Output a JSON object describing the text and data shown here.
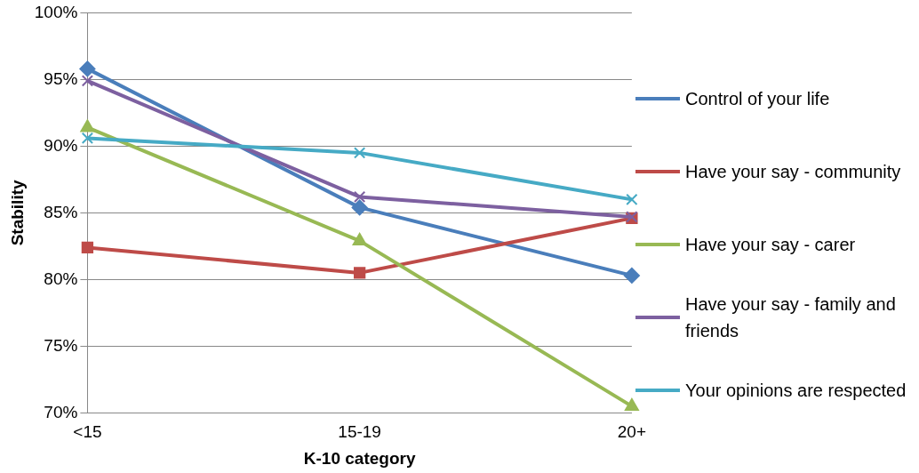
{
  "chart_data": {
    "type": "line",
    "xlabel": "K-10 category",
    "ylabel": "Stability",
    "categories": [
      "<15",
      "15-19",
      "20+"
    ],
    "series": [
      {
        "name": "Control of your life",
        "color": "#4a7ebb",
        "marker": "diamond",
        "values": [
          95.8,
          85.4,
          80.3
        ]
      },
      {
        "name": "Have your say  - community",
        "color": "#be4b48",
        "marker": "square",
        "values": [
          82.4,
          80.5,
          84.6
        ]
      },
      {
        "name": "Have your say - carer",
        "color": "#98b954",
        "marker": "triangle",
        "values": [
          91.4,
          82.9,
          70.5
        ]
      },
      {
        "name": "Have your say - family and friends",
        "color": "#7d60a0",
        "marker": "cross",
        "values": [
          94.9,
          86.2,
          84.7
        ]
      },
      {
        "name": "Your opinions are respected",
        "color": "#46aac5",
        "marker": "cross",
        "values": [
          90.6,
          89.5,
          86.0
        ]
      }
    ],
    "ylim": [
      70,
      100
    ],
    "yticks": [
      {
        "value": 70,
        "label": "70%"
      },
      {
        "value": 75,
        "label": "75%"
      },
      {
        "value": 80,
        "label": "80%"
      },
      {
        "value": 85,
        "label": "85%"
      },
      {
        "value": 90,
        "label": "90%"
      },
      {
        "value": 95,
        "label": "95%"
      },
      {
        "value": 100,
        "label": "100%"
      }
    ],
    "grid": "y",
    "legend": "right"
  }
}
